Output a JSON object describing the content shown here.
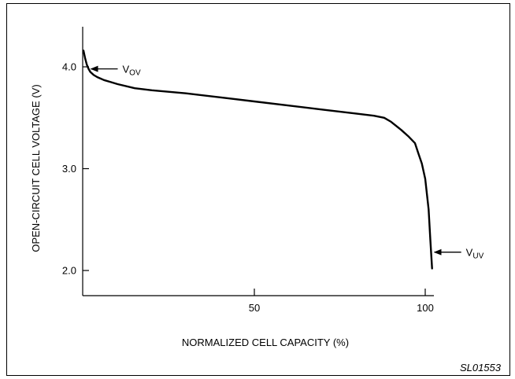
{
  "chart_data": {
    "type": "line",
    "title": "",
    "xlabel": "NORMALIZED CELL CAPACITY (%)",
    "ylabel": "OPEN-CIRCUIT CELL VOLTAGE (V)",
    "xlim": [
      0,
      110
    ],
    "ylim": [
      1.75,
      4.4
    ],
    "x_ticks": [
      50,
      100
    ],
    "x_tick_labels": [
      "50",
      "100"
    ],
    "y_ticks": [
      2.0,
      3.0,
      4.0
    ],
    "y_tick_labels": [
      "2.0",
      "3.0",
      "4.0"
    ],
    "grid": false,
    "series": [
      {
        "x": [
          0,
          0.5,
          1,
          1.5,
          2,
          3,
          4,
          6,
          8,
          10,
          15,
          20,
          30,
          40,
          50,
          60,
          70,
          80,
          85,
          88,
          90,
          93,
          95,
          97,
          98,
          99,
          100,
          101,
          101.5,
          102
        ],
        "y": [
          4.16,
          4.08,
          4.02,
          3.98,
          3.95,
          3.92,
          3.9,
          3.87,
          3.85,
          3.83,
          3.79,
          3.77,
          3.74,
          3.7,
          3.66,
          3.62,
          3.58,
          3.54,
          3.52,
          3.5,
          3.46,
          3.38,
          3.32,
          3.25,
          3.15,
          3.05,
          2.9,
          2.6,
          2.3,
          2.02
        ]
      }
    ],
    "annotations": [
      {
        "main": "V",
        "sub": "OV",
        "x": 1.5,
        "y": 3.98
      },
      {
        "main": "V",
        "sub": "UV",
        "x": 102,
        "y": 2.18
      }
    ],
    "figure_code": "SL01553"
  }
}
